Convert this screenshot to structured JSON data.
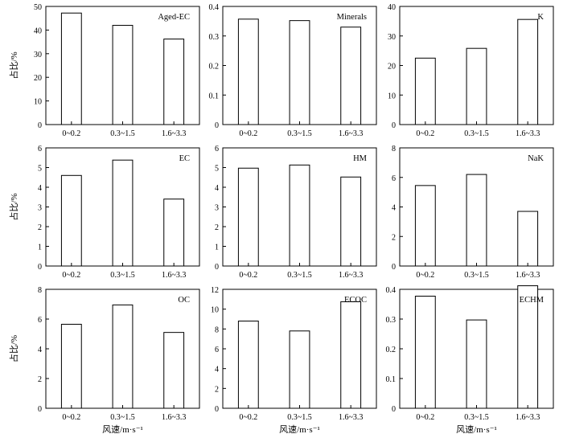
{
  "figure": {
    "ylabel": "占比/%",
    "xlabel": "风速/m·s⁻¹"
  },
  "chart_data": [
    {
      "type": "bar",
      "title": "Aged-EC",
      "categories": [
        "0~0.2",
        "0.3~1.5",
        "1.6~3.3"
      ],
      "values": [
        47.2,
        42.0,
        36.2
      ],
      "ylim": [
        0,
        50
      ],
      "yticks": [
        "0",
        "10",
        "20",
        "30",
        "40",
        "50"
      ],
      "xlabel": "",
      "ylabel": "占比/%",
      "grid": false,
      "legend": "none"
    },
    {
      "type": "bar",
      "title": "Minerals",
      "categories": [
        "0~0.2",
        "0.3~1.5",
        "1.6~3.3"
      ],
      "values": [
        0.357,
        0.352,
        0.33
      ],
      "ylim": [
        0,
        0.4
      ],
      "yticks": [
        "0",
        "0.1",
        "0.2",
        "0.3",
        "0.4"
      ],
      "xlabel": "",
      "ylabel": "",
      "grid": false,
      "legend": "none"
    },
    {
      "type": "bar",
      "title": "K",
      "categories": [
        "0~0.2",
        "0.3~1.5",
        "1.6~3.3"
      ],
      "values": [
        22.5,
        25.8,
        35.6
      ],
      "ylim": [
        0,
        40
      ],
      "yticks": [
        "0",
        "10",
        "20",
        "30",
        "40"
      ],
      "xlabel": "",
      "ylabel": "",
      "grid": false,
      "legend": "none"
    },
    {
      "type": "bar",
      "title": "EC",
      "categories": [
        "0~0.2",
        "0.3~1.5",
        "1.6~3.3"
      ],
      "values": [
        4.6,
        5.38,
        3.4
      ],
      "ylim": [
        0,
        6
      ],
      "yticks": [
        "0",
        "1",
        "2",
        "3",
        "4",
        "5",
        "6"
      ],
      "xlabel": "",
      "ylabel": "占比/%",
      "grid": false,
      "legend": "none"
    },
    {
      "type": "bar",
      "title": "HM",
      "categories": [
        "0~0.2",
        "0.3~1.5",
        "1.6~3.3"
      ],
      "values": [
        4.97,
        5.13,
        4.52
      ],
      "ylim": [
        0,
        6
      ],
      "yticks": [
        "0",
        "1",
        "2",
        "3",
        "4",
        "5",
        "6"
      ],
      "xlabel": "",
      "ylabel": "",
      "grid": false,
      "legend": "none"
    },
    {
      "type": "bar",
      "title": "NaK",
      "categories": [
        "0~0.2",
        "0.3~1.5",
        "1.6~3.3"
      ],
      "values": [
        5.45,
        6.2,
        3.7
      ],
      "ylim": [
        0,
        8
      ],
      "yticks": [
        "0",
        "2",
        "4",
        "6",
        "8"
      ],
      "xlabel": "",
      "ylabel": "",
      "grid": false,
      "legend": "none"
    },
    {
      "type": "bar",
      "title": "OC",
      "categories": [
        "0~0.2",
        "0.3~1.5",
        "1.6~3.3"
      ],
      "values": [
        5.65,
        6.95,
        5.1
      ],
      "ylim": [
        0,
        8
      ],
      "yticks": [
        "0",
        "2",
        "4",
        "6",
        "8"
      ],
      "xlabel": "风速/m·s⁻¹",
      "ylabel": "占比/%",
      "grid": false,
      "legend": "none"
    },
    {
      "type": "bar",
      "title": "ECOC",
      "categories": [
        "0~0.2",
        "0.3~1.5",
        "1.6~3.3"
      ],
      "values": [
        8.8,
        7.8,
        10.75
      ],
      "ylim": [
        0,
        12
      ],
      "yticks": [
        "0",
        "2",
        "4",
        "6",
        "8",
        "10",
        "12"
      ],
      "xlabel": "风速/m·s⁻¹",
      "ylabel": "",
      "grid": false,
      "legend": "none"
    },
    {
      "type": "bar",
      "title": "ECHM",
      "categories": [
        "0~0.2",
        "0.3~1.5",
        "1.6~3.3"
      ],
      "values": [
        0.377,
        0.297,
        0.412
      ],
      "ylim": [
        0,
        0.4
      ],
      "yticks": [
        "0",
        "0.1",
        "0.2",
        "0.3",
        "0.4"
      ],
      "xlabel": "风速/m·s⁻¹",
      "ylabel": "",
      "grid": false,
      "legend": "none"
    }
  ]
}
